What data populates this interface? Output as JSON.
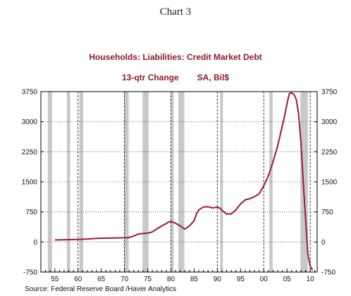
{
  "page_label": "Chart 3",
  "source": "Source:  Federal Reserve Board /Haver Analytics",
  "chart_data": {
    "type": "line",
    "title": "Households: Liabilities: Credit Market Debt",
    "subtitle_parts": [
      "13-qtr Change",
      "SA, Bil$"
    ],
    "xlabel": "",
    "ylabel": "",
    "x_tick_labels": [
      "55",
      "60",
      "65",
      "70",
      "75",
      "80",
      "85",
      "90",
      "95",
      "00",
      "05",
      "10"
    ],
    "x_tick_years": [
      1955,
      1960,
      1965,
      1970,
      1975,
      1980,
      1985,
      1990,
      1995,
      2000,
      2005,
      2010
    ],
    "xlim": [
      1952,
      2011.5
    ],
    "y_tick_labels": [
      "3750",
      "3000",
      "2250",
      "1500",
      "750",
      "0",
      "-750"
    ],
    "y_ticks": [
      3750,
      3000,
      2250,
      1500,
      750,
      0,
      -750
    ],
    "ylim": [
      -750,
      3750
    ],
    "y_axis_both_sides": true,
    "grid": "horizontal dotted",
    "recessions": [
      [
        1953.5,
        1954.4
      ],
      [
        1957.6,
        1958.3
      ],
      [
        1960.3,
        1961.1
      ],
      [
        1969.9,
        1970.9
      ],
      [
        1973.9,
        1975.2
      ],
      [
        1980.0,
        1980.6
      ],
      [
        1981.6,
        1982.9
      ],
      [
        1990.6,
        1991.2
      ],
      [
        2001.2,
        2001.9
      ],
      [
        2007.9,
        2009.5
      ]
    ],
    "vertical_dashed_lines": [
      1960,
      1970,
      1980,
      1990,
      2000,
      2010
    ],
    "line_color": "#9b1b30",
    "series": [
      {
        "x": [
          1955.0,
          1957.0,
          1959.0,
          1960.5,
          1962.0,
          1964.0,
          1966.0,
          1968.0,
          1970.0,
          1971.0,
          1972.0,
          1973.0,
          1974.0,
          1975.0,
          1976.0,
          1977.0,
          1978.0,
          1979.0,
          1979.5,
          1980.0,
          1981.0,
          1982.0,
          1983.0,
          1984.0,
          1985.0,
          1985.5,
          1986.0,
          1987.0,
          1988.0,
          1989.0,
          1990.0,
          1990.5,
          1991.0,
          1992.0,
          1993.0,
          1994.0,
          1995.0,
          1996.0,
          1997.0,
          1998.0,
          1999.0,
          2000.0,
          2001.0,
          2002.0,
          2003.0,
          2004.0,
          2004.5,
          2005.0,
          2005.5,
          2006.0,
          2006.5,
          2007.0,
          2007.5,
          2008.0,
          2008.5,
          2009.0,
          2009.5,
          2010.0,
          2010.5
        ],
        "y": [
          50,
          55,
          60,
          65,
          75,
          90,
          95,
          100,
          105,
          110,
          150,
          200,
          210,
          220,
          250,
          330,
          400,
          460,
          500,
          510,
          470,
          400,
          320,
          400,
          530,
          700,
          800,
          870,
          880,
          850,
          870,
          850,
          790,
          700,
          700,
          800,
          950,
          1050,
          1080,
          1130,
          1200,
          1400,
          1650,
          2000,
          2400,
          2900,
          3150,
          3450,
          3700,
          3720,
          3680,
          3550,
          3200,
          2500,
          1500,
          600,
          -300,
          -600,
          -700
        ]
      }
    ]
  }
}
